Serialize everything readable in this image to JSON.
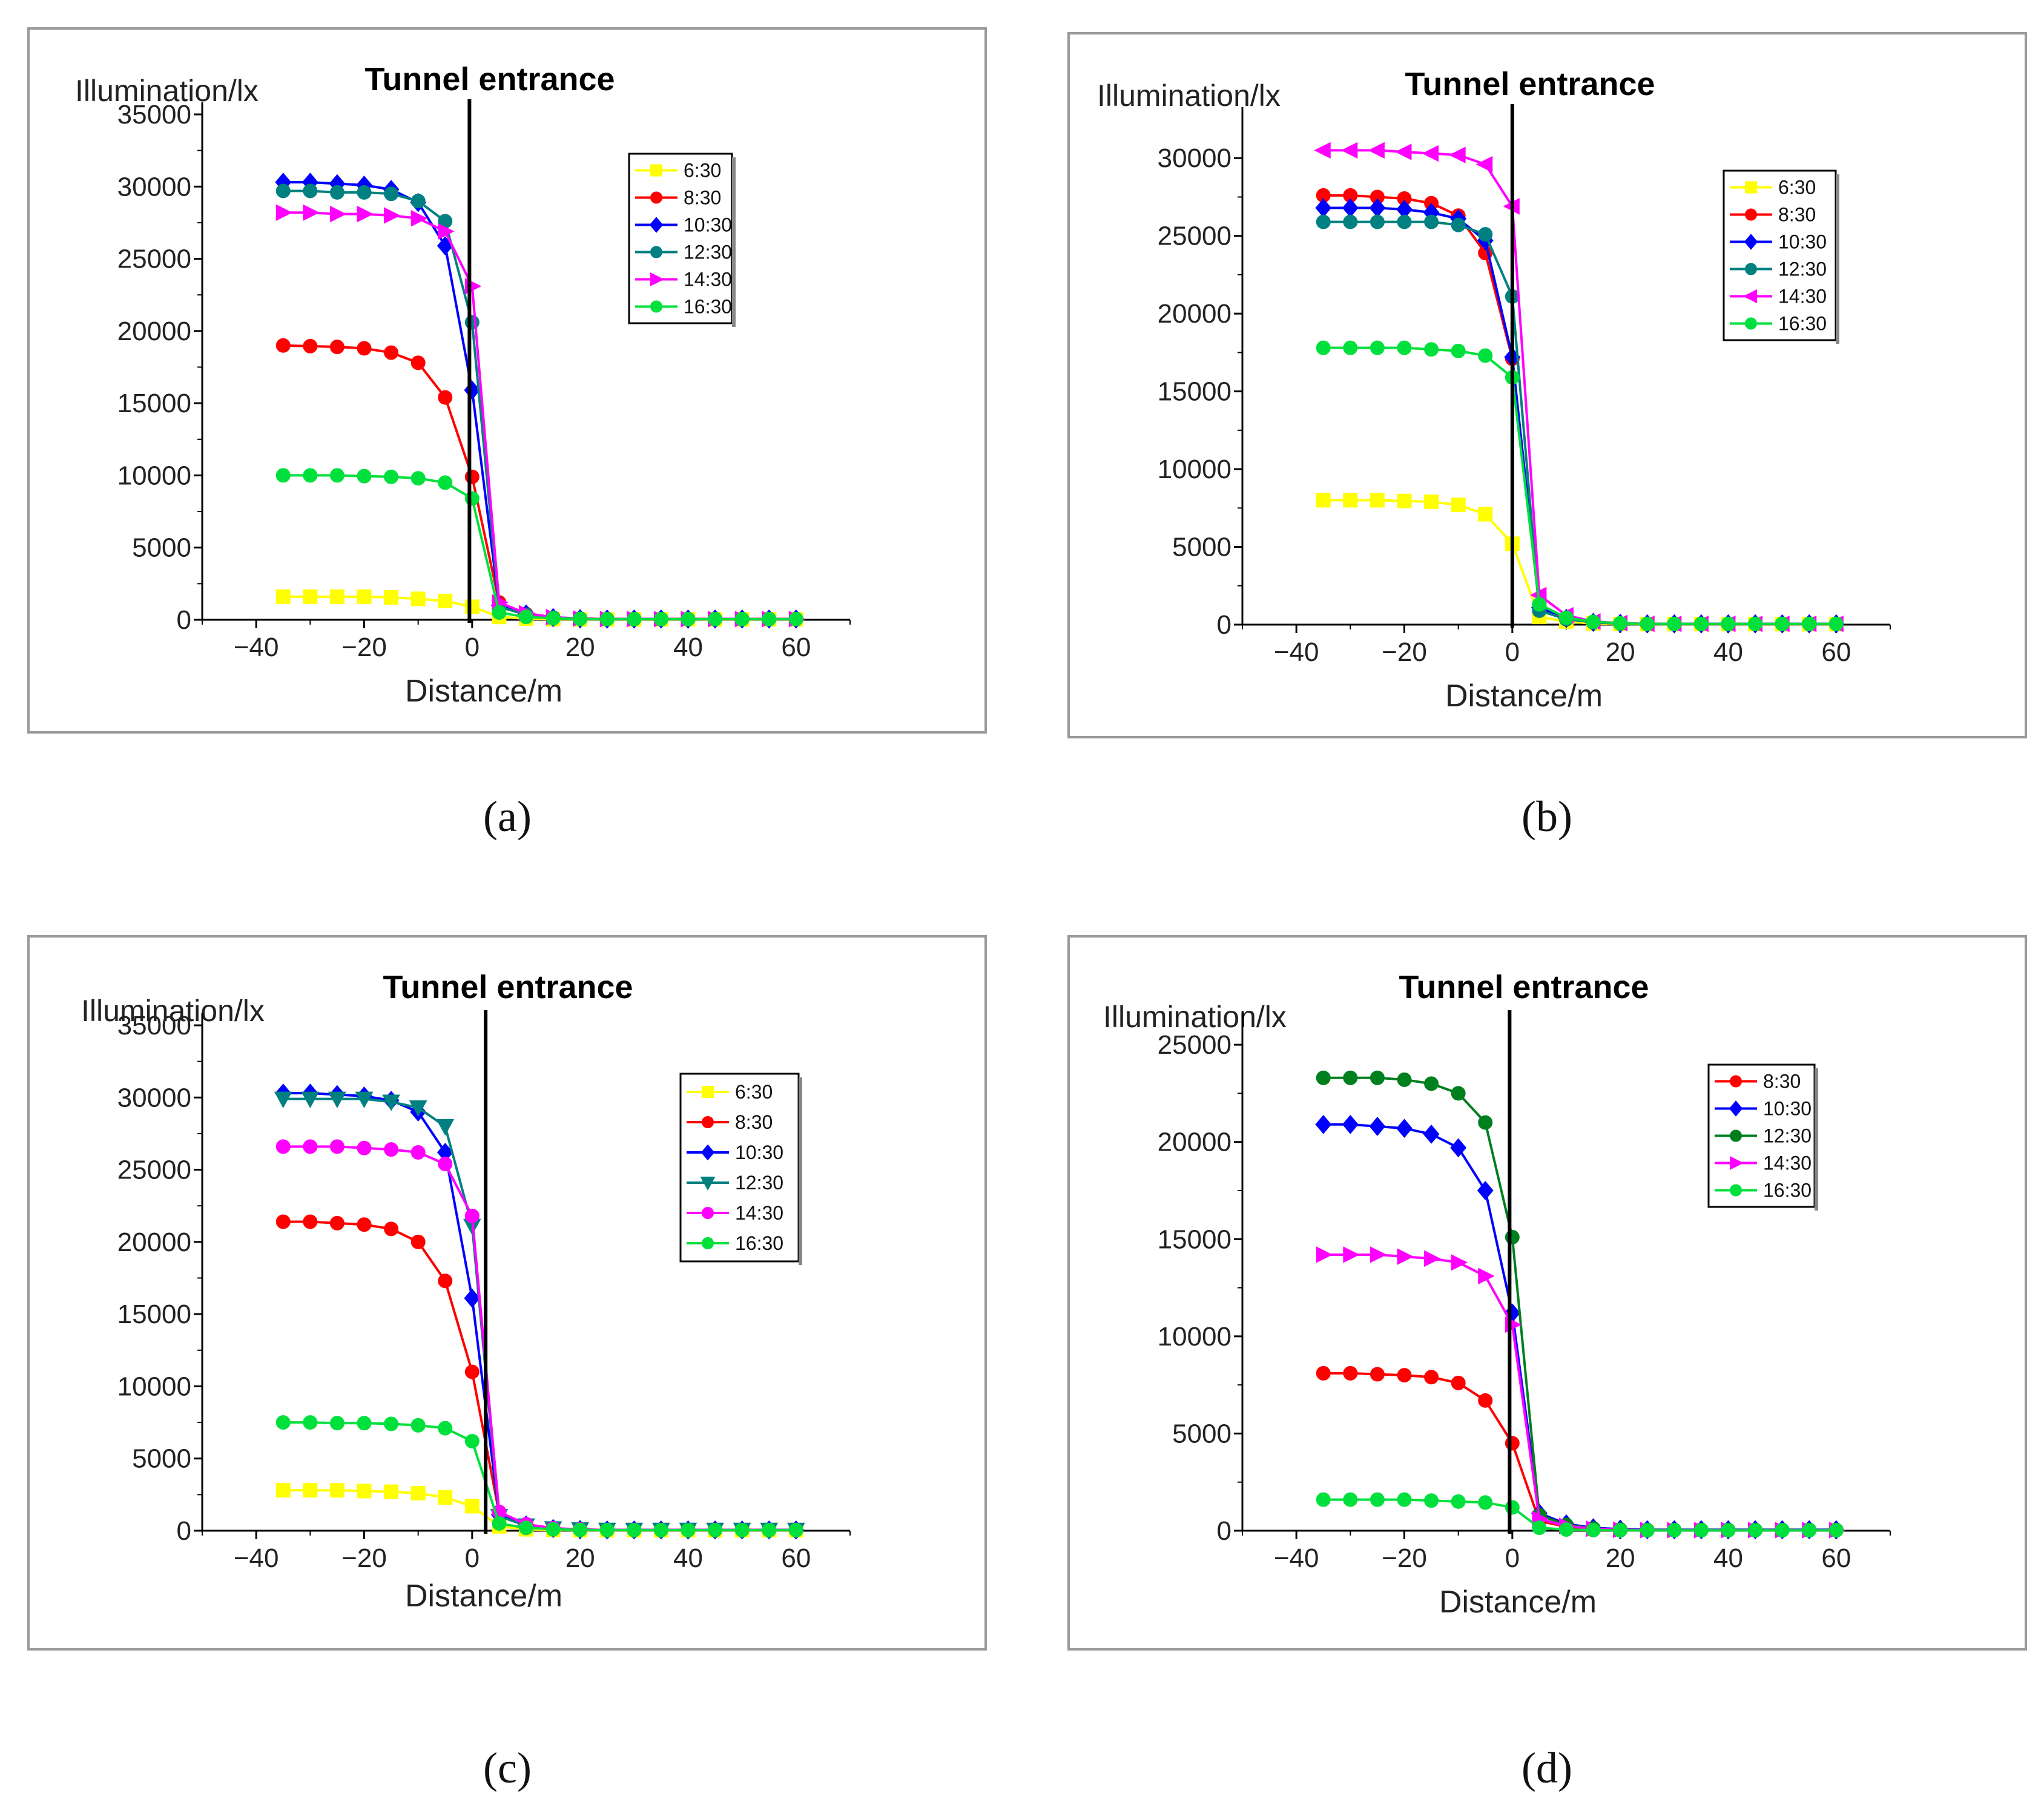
{
  "captions": [
    "(a)",
    "(b)",
    "(c)",
    "(d)"
  ],
  "colors": {
    "6:30": "#ffff00",
    "8:30": "#ff0000",
    "10:30": "#0000ff",
    "12:30": "#008080",
    "12:30d": "#007f1f",
    "14:30": "#ff00ff",
    "16:30": "#00e03c"
  },
  "chart_data": [
    {
      "type": "line",
      "title": "Tunnel entrance",
      "xlabel": "Distance/m",
      "ylabel": "Illumination/lx",
      "xlim": [
        -50,
        70
      ],
      "ylim": [
        0,
        35000
      ],
      "xticks": [
        -40,
        -20,
        0,
        20,
        40,
        60
      ],
      "yticks": [
        0,
        5000,
        10000,
        15000,
        20000,
        25000,
        30000,
        35000
      ],
      "entrance_x": -0.5,
      "x": [
        -35,
        -30,
        -25,
        -20,
        -15,
        -10,
        -5,
        0,
        5,
        10,
        15,
        20,
        25,
        30,
        35,
        40,
        45,
        50,
        55,
        60
      ],
      "series": [
        {
          "name": "6:30",
          "color": "#ffff00",
          "marker": "square",
          "values": [
            1600,
            1600,
            1600,
            1600,
            1550,
            1450,
            1300,
            900,
            200,
            80,
            40,
            30,
            30,
            30,
            30,
            30,
            30,
            30,
            30,
            30
          ]
        },
        {
          "name": "8:30",
          "color": "#ff0000",
          "marker": "circle",
          "values": [
            19000,
            18950,
            18900,
            18800,
            18500,
            17800,
            15400,
            9900,
            1200,
            400,
            150,
            80,
            50,
            50,
            50,
            50,
            50,
            50,
            50,
            50
          ]
        },
        {
          "name": "10:30",
          "color": "#0000ff",
          "marker": "diamond",
          "values": [
            30300,
            30300,
            30200,
            30100,
            29800,
            28900,
            25900,
            15900,
            1000,
            400,
            150,
            80,
            50,
            50,
            50,
            50,
            50,
            50,
            50,
            50
          ]
        },
        {
          "name": "12:30",
          "color": "#008080",
          "marker": "circle",
          "values": [
            29700,
            29700,
            29600,
            29600,
            29500,
            29000,
            27600,
            20600,
            900,
            350,
            150,
            80,
            50,
            50,
            50,
            50,
            50,
            50,
            50,
            50
          ]
        },
        {
          "name": "14:30",
          "color": "#ff00ff",
          "marker": "triangle-right",
          "values": [
            28200,
            28200,
            28100,
            28100,
            28000,
            27800,
            26900,
            23100,
            1200,
            450,
            180,
            90,
            50,
            50,
            50,
            50,
            50,
            50,
            50,
            50
          ]
        },
        {
          "name": "16:30",
          "color": "#00e03c",
          "marker": "circle",
          "values": [
            10000,
            10000,
            10000,
            9950,
            9900,
            9800,
            9500,
            8400,
            500,
            200,
            100,
            60,
            40,
            40,
            40,
            40,
            40,
            40,
            40,
            40
          ]
        }
      ]
    },
    {
      "type": "line",
      "title": "Tunnel entrance",
      "xlabel": "Distance/m",
      "ylabel": "Illumination/lx",
      "xlim": [
        -50,
        70
      ],
      "ylim": [
        0,
        32500
      ],
      "xticks": [
        -40,
        -20,
        0,
        20,
        40,
        60
      ],
      "yticks": [
        0,
        5000,
        10000,
        15000,
        20000,
        25000,
        30000
      ],
      "entrance_x": 0,
      "x": [
        -35,
        -30,
        -25,
        -20,
        -15,
        -10,
        -5,
        0,
        5,
        10,
        15,
        20,
        25,
        30,
        35,
        40,
        45,
        50,
        55,
        60
      ],
      "series": [
        {
          "name": "6:30",
          "color": "#ffff00",
          "marker": "square",
          "values": [
            8000,
            8000,
            8000,
            7950,
            7900,
            7700,
            7100,
            5200,
            500,
            200,
            80,
            40,
            30,
            30,
            30,
            30,
            30,
            30,
            30,
            30
          ]
        },
        {
          "name": "8:30",
          "color": "#ff0000",
          "marker": "circle",
          "values": [
            27600,
            27600,
            27500,
            27400,
            27100,
            26300,
            23900,
            17100,
            1200,
            400,
            150,
            80,
            50,
            50,
            50,
            50,
            50,
            50,
            50,
            50
          ]
        },
        {
          "name": "10:30",
          "color": "#0000ff",
          "marker": "diamond",
          "values": [
            26800,
            26800,
            26800,
            26700,
            26500,
            26100,
            24700,
            17200,
            1100,
            400,
            150,
            80,
            50,
            50,
            50,
            50,
            50,
            50,
            50,
            50
          ]
        },
        {
          "name": "12:30",
          "color": "#008080",
          "marker": "circle",
          "values": [
            25900,
            25900,
            25900,
            25900,
            25900,
            25700,
            25100,
            21100,
            900,
            350,
            150,
            80,
            50,
            50,
            50,
            50,
            50,
            50,
            50,
            50
          ]
        },
        {
          "name": "14:30",
          "color": "#ff00ff",
          "marker": "triangle-left",
          "values": [
            30500,
            30500,
            30500,
            30400,
            30300,
            30200,
            29600,
            26900,
            1900,
            600,
            200,
            100,
            50,
            50,
            50,
            50,
            50,
            50,
            50,
            50
          ]
        },
        {
          "name": "16:30",
          "color": "#00e03c",
          "marker": "circle",
          "values": [
            17800,
            17800,
            17800,
            17800,
            17700,
            17600,
            17300,
            15900,
            1300,
            450,
            180,
            90,
            50,
            50,
            50,
            50,
            50,
            50,
            50,
            50
          ]
        }
      ]
    },
    {
      "type": "line",
      "title": "Tunnel entrance",
      "xlabel": "Distance/m",
      "ylabel": "Illumination/lx",
      "xlim": [
        -50,
        70
      ],
      "ylim": [
        0,
        35000
      ],
      "xticks": [
        -40,
        -20,
        0,
        20,
        40,
        60
      ],
      "yticks": [
        0,
        5000,
        10000,
        15000,
        20000,
        25000,
        30000,
        35000
      ],
      "entrance_x": 2.5,
      "x": [
        -35,
        -30,
        -25,
        -20,
        -15,
        -10,
        -5,
        0,
        5,
        10,
        15,
        20,
        25,
        30,
        35,
        40,
        45,
        50,
        55,
        60
      ],
      "series": [
        {
          "name": "6:30",
          "color": "#ffff00",
          "marker": "square",
          "values": [
            2800,
            2800,
            2800,
            2750,
            2700,
            2600,
            2300,
            1700,
            300,
            100,
            50,
            30,
            30,
            30,
            30,
            30,
            30,
            30,
            30,
            30
          ]
        },
        {
          "name": "8:30",
          "color": "#ff0000",
          "marker": "circle",
          "values": [
            21400,
            21400,
            21300,
            21200,
            20900,
            20000,
            17300,
            11000,
            1200,
            400,
            150,
            80,
            50,
            50,
            50,
            50,
            50,
            50,
            50,
            50
          ]
        },
        {
          "name": "10:30",
          "color": "#0000ff",
          "marker": "diamond",
          "values": [
            30300,
            30300,
            30200,
            30100,
            29800,
            29000,
            26200,
            16100,
            1100,
            400,
            150,
            80,
            50,
            50,
            50,
            50,
            50,
            50,
            50,
            50
          ]
        },
        {
          "name": "12:30",
          "color": "#008080",
          "marker": "triangle-down",
          "values": [
            29900,
            29900,
            29900,
            29900,
            29700,
            29300,
            28000,
            21100,
            1000,
            350,
            150,
            80,
            50,
            50,
            50,
            50,
            50,
            50,
            50,
            50
          ]
        },
        {
          "name": "14:30",
          "color": "#ff00ff",
          "marker": "circle",
          "values": [
            26600,
            26600,
            26600,
            26500,
            26400,
            26200,
            25400,
            21800,
            1300,
            450,
            180,
            90,
            50,
            50,
            50,
            50,
            50,
            50,
            50,
            50
          ]
        },
        {
          "name": "16:30",
          "color": "#00e03c",
          "marker": "circle",
          "values": [
            7500,
            7500,
            7450,
            7450,
            7400,
            7300,
            7100,
            6200,
            500,
            200,
            100,
            60,
            40,
            40,
            40,
            40,
            40,
            40,
            40,
            40
          ]
        }
      ]
    },
    {
      "type": "line",
      "title": "Tunnel entrance",
      "xlabel": "Distance/m",
      "ylabel": "Illumination/lx",
      "xlim": [
        -50,
        70
      ],
      "ylim": [
        0,
        26000
      ],
      "xticks": [
        -40,
        -20,
        0,
        20,
        40,
        60
      ],
      "yticks": [
        0,
        5000,
        10000,
        15000,
        20000,
        25000
      ],
      "entrance_x": -0.5,
      "x": [
        -35,
        -30,
        -25,
        -20,
        -15,
        -10,
        -5,
        0,
        5,
        10,
        15,
        20,
        25,
        30,
        35,
        40,
        45,
        50,
        55,
        60
      ],
      "series": [
        {
          "name": "8:30",
          "color": "#ff0000",
          "marker": "circle",
          "values": [
            8100,
            8100,
            8050,
            8000,
            7900,
            7600,
            6700,
            4500,
            500,
            200,
            80,
            40,
            30,
            30,
            30,
            30,
            30,
            30,
            30,
            30
          ]
        },
        {
          "name": "10:30",
          "color": "#0000ff",
          "marker": "diamond",
          "values": [
            20900,
            20900,
            20800,
            20700,
            20400,
            19700,
            17500,
            11200,
            900,
            350,
            150,
            80,
            50,
            50,
            50,
            50,
            50,
            50,
            50,
            50
          ]
        },
        {
          "name": "12:30",
          "color": "#007f1f",
          "marker": "circle",
          "values": [
            23300,
            23300,
            23300,
            23200,
            23000,
            22500,
            21000,
            15100,
            800,
            300,
            120,
            60,
            40,
            40,
            40,
            40,
            40,
            40,
            40,
            40
          ]
        },
        {
          "name": "14:30",
          "color": "#ff00ff",
          "marker": "triangle-right",
          "values": [
            14200,
            14200,
            14200,
            14100,
            14000,
            13800,
            13100,
            10600,
            600,
            250,
            100,
            50,
            30,
            30,
            30,
            30,
            30,
            30,
            30,
            30
          ]
        },
        {
          "name": "16:30",
          "color": "#00e03c",
          "marker": "circle",
          "values": [
            1600,
            1600,
            1600,
            1600,
            1550,
            1500,
            1450,
            1200,
            150,
            60,
            30,
            20,
            20,
            20,
            20,
            20,
            20,
            20,
            20,
            20
          ]
        }
      ]
    }
  ]
}
